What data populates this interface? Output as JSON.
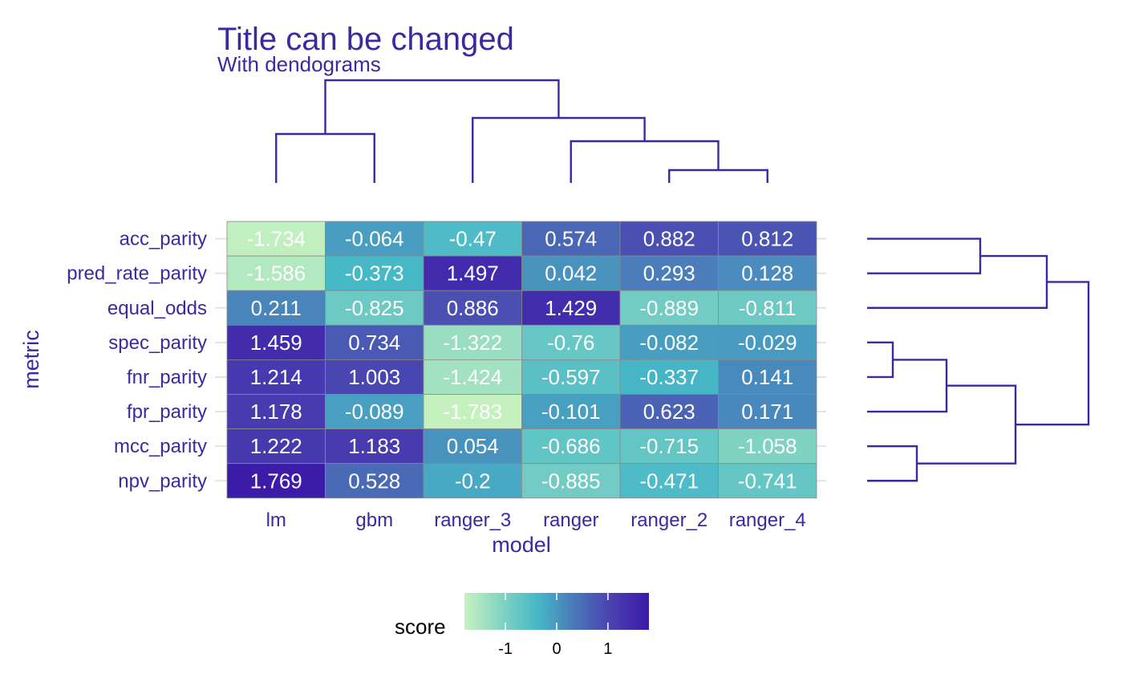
{
  "title": "Title can be changed",
  "subtitle": "With dendograms",
  "colors": {
    "text": "#3a2aa0",
    "dendrogram": "#3a2aa0",
    "grid": "#e3e3e3",
    "cell_border": "#8a8a8a",
    "scale": [
      "#c7f2bf",
      "#82d3c3",
      "#46b7c6",
      "#4a77b8",
      "#4a40b0",
      "#3a1aa8"
    ]
  },
  "chart_data": {
    "type": "heatmap",
    "xlabel": "model",
    "ylabel": "metric",
    "x_categories": [
      "lm",
      "gbm",
      "ranger_3",
      "ranger",
      "ranger_2",
      "ranger_4"
    ],
    "y_categories": [
      "acc_parity",
      "pred_rate_parity",
      "equal_odds",
      "spec_parity",
      "fnr_parity",
      "fpr_parity",
      "mcc_parity",
      "npv_parity"
    ],
    "values": [
      [
        -1.734,
        -0.064,
        -0.47,
        0.574,
        0.882,
        0.812
      ],
      [
        -1.586,
        -0.373,
        1.497,
        0.042,
        0.293,
        0.128
      ],
      [
        0.211,
        -0.825,
        0.886,
        1.429,
        -0.889,
        -0.811
      ],
      [
        1.459,
        0.734,
        -1.322,
        -0.76,
        -0.082,
        -0.029
      ],
      [
        1.214,
        1.003,
        -1.424,
        -0.597,
        -0.337,
        0.141
      ],
      [
        1.178,
        -0.089,
        -1.783,
        -0.101,
        0.623,
        0.171
      ],
      [
        1.222,
        1.183,
        0.054,
        -0.686,
        -0.715,
        -1.058
      ],
      [
        1.769,
        0.528,
        -0.2,
        -0.885,
        -0.471,
        -0.741
      ]
    ],
    "labels": [
      [
        "-1.734",
        "-0.064",
        "-0.47",
        "0.574",
        "0.882",
        "0.812"
      ],
      [
        "-1.586",
        "-0.373",
        "1.497",
        "0.042",
        "0.293",
        "0.128"
      ],
      [
        "0.211",
        "-0.825",
        "0.886",
        "1.429",
        "-0.889",
        "-0.811"
      ],
      [
        "1.459",
        "0.734",
        "-1.322",
        "-0.76",
        "-0.082",
        "-0.029"
      ],
      [
        "1.214",
        "1.003",
        "-1.424",
        "-0.597",
        "-0.337",
        "0.141"
      ],
      [
        "1.178",
        "-0.089",
        "-1.783",
        "-0.101",
        "0.623",
        "0.171"
      ],
      [
        "1.222",
        "1.183",
        "0.054",
        "-0.686",
        "-0.715",
        "-1.058"
      ],
      [
        "1.769",
        "0.528",
        "-0.2",
        "-0.885",
        "-0.471",
        "-0.741"
      ]
    ],
    "legend": {
      "title": "score",
      "placement": "bottom",
      "range": [
        -1.8,
        1.8
      ],
      "ticks": [
        -1,
        0,
        1
      ],
      "tick_labels": [
        "-1",
        "0",
        "1"
      ]
    },
    "column_dendrogram": "((lm, gbm), (ranger_3, (ranger, (ranger_2, ranger_4))))",
    "row_dendrogram": "(((acc_parity, pred_rate_parity), equal_odds), (((spec_parity, fnr_parity), fpr_parity), (mcc_parity, npv_parity)))"
  }
}
